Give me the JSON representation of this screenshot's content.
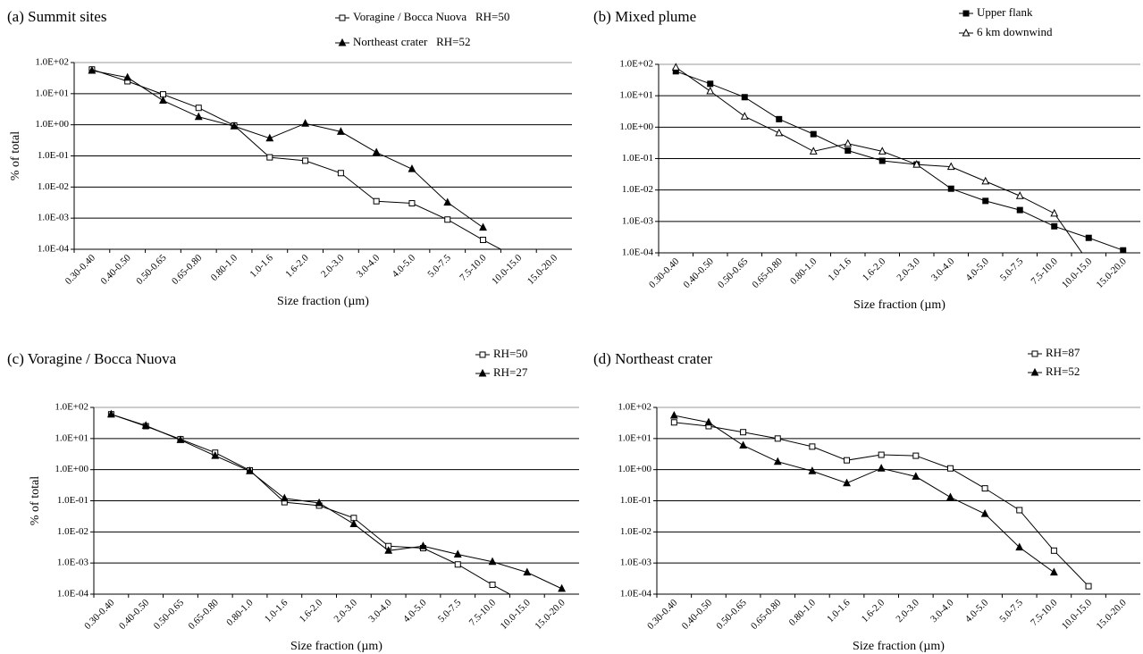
{
  "chart_data": [
    {
      "type": "line",
      "title": "(a) Summit sites",
      "xlabel": "Size fraction (µm)",
      "ylabel": "% of total",
      "categories": [
        "0.30-0.40",
        "0.40-0.50",
        "0.50-0.65",
        "0.65-0.80",
        "0.80-1.0",
        "1.0-1.6",
        "1.6-2.0",
        "2.0-3.0",
        "3.0-4.0",
        "4.0-5.0",
        "5.0-7.5",
        "7.5-10.0",
        "10.0-15.0",
        "15.0-20.0"
      ],
      "series": [
        {
          "name": "Voragine / Bocca Nuova   RH=50",
          "color": "#000000",
          "marker": "square-open",
          "values": [
            60,
            25,
            9.5,
            3.5,
            0.95,
            0.09,
            0.07,
            0.028,
            0.0035,
            0.003,
            0.0009,
            0.0002,
            5e-05,
            null
          ]
        },
        {
          "name": "Northeast crater   RH=52",
          "color": "#000000",
          "marker": "triangle-filled",
          "values": [
            55,
            33,
            6,
            1.8,
            0.9,
            0.37,
            1.1,
            0.6,
            0.13,
            0.038,
            0.0032,
            0.0005,
            null,
            null
          ]
        }
      ],
      "log_y": true,
      "grid": true,
      "ylim": [
        0.0001,
        100
      ],
      "yticks": [
        {
          "value": 0.0001,
          "label": "1.0E-04"
        },
        {
          "value": 0.001,
          "label": "1.0E-03"
        },
        {
          "value": 0.01,
          "label": "1.0E-02"
        },
        {
          "value": 0.1,
          "label": "1.0E-01"
        },
        {
          "value": 1,
          "label": "1.0E+00"
        },
        {
          "value": 10,
          "label": "1.0E+01"
        },
        {
          "value": 100,
          "label": "1.0E+02"
        }
      ]
    },
    {
      "type": "line",
      "title": "(b) Mixed plume",
      "xlabel": "Size fraction (µm)",
      "categories": [
        "0.30-0.40",
        "0.40-0.50",
        "0.50-0.65",
        "0.65-0.80",
        "0.80-1.0",
        "1.0-1.6",
        "1.6-2.0",
        "2.0-3.0",
        "3.0-4.0",
        "4.0-5.0",
        "5.0-7.5",
        "7.5-10.0",
        "10.0-15.0",
        "15.0-20.0"
      ],
      "series": [
        {
          "name": "Upper flank",
          "color": "#000000",
          "marker": "square-filled",
          "values": [
            60,
            24,
            9,
            1.8,
            0.6,
            0.18,
            0.085,
            0.065,
            0.011,
            0.0045,
            0.0023,
            0.0007,
            0.0003,
            0.00012
          ]
        },
        {
          "name": "6 km downwind",
          "color": "#000000",
          "marker": "triangle-open",
          "values": [
            80,
            14,
            2.2,
            0.65,
            0.17,
            0.3,
            0.17,
            0.065,
            0.055,
            0.019,
            0.0065,
            0.0018,
            5e-05,
            null
          ]
        }
      ],
      "log_y": true,
      "grid": true,
      "ylim": [
        0.0001,
        100
      ],
      "yticks": [
        {
          "value": 0.0001,
          "label": "1.0E-04"
        },
        {
          "value": 0.001,
          "label": "1.0E-03"
        },
        {
          "value": 0.01,
          "label": "1.0E-02"
        },
        {
          "value": 0.1,
          "label": "1.0E-01"
        },
        {
          "value": 1,
          "label": "1.0E+00"
        },
        {
          "value": 10,
          "label": "1.0E+01"
        },
        {
          "value": 100,
          "label": "1.0E+02"
        }
      ]
    },
    {
      "type": "line",
      "title": "(c) Voragine / Bocca Nuova",
      "xlabel": "Size fraction (µm)",
      "ylabel": "% of total",
      "categories": [
        "0.30-0.40",
        "0.40-0.50",
        "0.50-0.65",
        "0.65-0.80",
        "0.80-1.0",
        "1.0-1.6",
        "1.6-2.0",
        "2.0-3.0",
        "3.0-4.0",
        "4.0-5.0",
        "5.0-7.5",
        "7.5-10.0",
        "10.0-15.0",
        "15.0-20.0"
      ],
      "series": [
        {
          "name": "RH=50",
          "color": "#000000",
          "marker": "square-open",
          "values": [
            60,
            25,
            9.5,
            3.5,
            0.95,
            0.09,
            0.07,
            0.028,
            0.0035,
            0.003,
            0.0009,
            0.0002,
            5e-05,
            null
          ]
        },
        {
          "name": "RH=27",
          "color": "#000000",
          "marker": "triangle-filled",
          "values": [
            60,
            26,
            9,
            2.8,
            0.9,
            0.12,
            0.085,
            0.018,
            0.0025,
            0.0035,
            0.0019,
            0.0011,
            0.0005,
            0.00015
          ]
        }
      ],
      "log_y": true,
      "grid": true,
      "ylim": [
        0.0001,
        100
      ],
      "yticks": [
        {
          "value": 0.0001,
          "label": "1.0E-04"
        },
        {
          "value": 0.001,
          "label": "1.0E-03"
        },
        {
          "value": 0.01,
          "label": "1.0E-02"
        },
        {
          "value": 0.1,
          "label": "1.0E-01"
        },
        {
          "value": 1,
          "label": "1.0E+00"
        },
        {
          "value": 10,
          "label": "1.0E+01"
        },
        {
          "value": 100,
          "label": "1.0E+02"
        }
      ]
    },
    {
      "type": "line",
      "title": "(d) Northeast crater",
      "xlabel": "Size fraction (µm)",
      "categories": [
        "0.30-0.40",
        "0.40-0.50",
        "0.50-0.65",
        "0.65-0.80",
        "0.80-1.0",
        "1.0-1.6",
        "1.6-2.0",
        "2.0-3.0",
        "3.0-4.0",
        "4.0-5.0",
        "5.0-7.5",
        "7.5-10.0",
        "10.0-15.0",
        "15.0-20.0"
      ],
      "series": [
        {
          "name": "RH=87",
          "color": "#000000",
          "marker": "square-open",
          "values": [
            33,
            25,
            16,
            10,
            5.5,
            2,
            3,
            2.8,
            1.1,
            0.25,
            0.05,
            0.0025,
            0.00018,
            null
          ]
        },
        {
          "name": "RH=52",
          "color": "#000000",
          "marker": "triangle-filled",
          "values": [
            55,
            33,
            6,
            1.8,
            0.9,
            0.37,
            1.1,
            0.6,
            0.13,
            0.038,
            0.0032,
            0.0005,
            null,
            null
          ]
        }
      ],
      "log_y": true,
      "grid": true,
      "ylim": [
        0.0001,
        100
      ],
      "yticks": [
        {
          "value": 0.0001,
          "label": "1.0E-04"
        },
        {
          "value": 0.001,
          "label": "1.0E-03"
        },
        {
          "value": 0.01,
          "label": "1.0E-02"
        },
        {
          "value": 0.1,
          "label": "1.0E-01"
        },
        {
          "value": 1,
          "label": "1.0E+00"
        },
        {
          "value": 10,
          "label": "1.0E+01"
        },
        {
          "value": 100,
          "label": "1.0E+02"
        }
      ]
    }
  ]
}
